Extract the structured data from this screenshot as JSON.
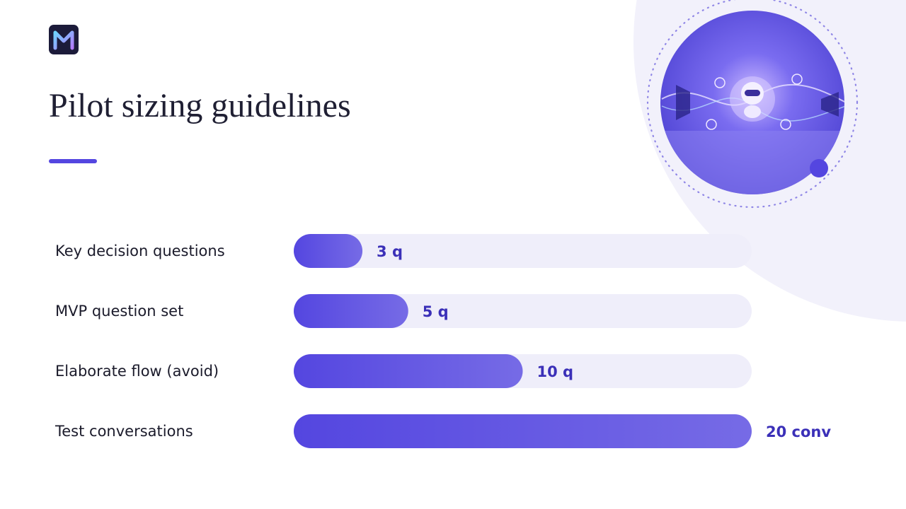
{
  "chart_data": {
    "type": "bar",
    "orientation": "horizontal",
    "title": "Pilot sizing guidelines",
    "categories": [
      "Key decision questions",
      "MVP question set",
      "Elaborate flow (avoid)",
      "Test conversations"
    ],
    "values": [
      3,
      5,
      10,
      20
    ],
    "value_labels": [
      "3 q",
      "5 q",
      "10 q",
      "20 conv"
    ],
    "color": "#5446e0",
    "xlim": [
      0,
      20
    ]
  }
}
